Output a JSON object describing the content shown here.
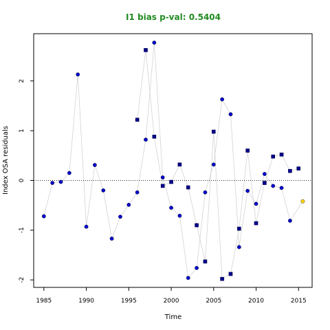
{
  "chart_data": {
    "type": "scatter",
    "title": "I1 bias p-val: 0.5404",
    "title_color": "#228B22",
    "xlabel": "Time",
    "ylabel": "Index OSA residuals",
    "xlim": [
      1983.8,
      2016.6
    ],
    "ylim": [
      -2.15,
      2.95
    ],
    "x_ticks": [
      1985,
      1990,
      1995,
      2000,
      2005,
      2010,
      2015
    ],
    "x_tick_labels": [
      "1985",
      "1990",
      "1995",
      "2000",
      "2005",
      "2010",
      "2015"
    ],
    "y_ticks": [
      -2,
      -1,
      0,
      1,
      2
    ],
    "y_tick_labels": [
      "-2",
      "-1",
      "0",
      "1",
      "2"
    ],
    "reference_line": {
      "y": 0,
      "style": "dotted"
    },
    "grid": false,
    "connector_color": "#d3d3d3",
    "series": [
      {
        "marker": "circle",
        "color": "#0000CD",
        "points": [
          {
            "x": 1985,
            "y": -0.72
          },
          {
            "x": 1986,
            "y": -0.05
          },
          {
            "x": 1987,
            "y": -0.03
          },
          {
            "x": 1988,
            "y": 0.15
          },
          {
            "x": 1989,
            "y": 2.13
          },
          {
            "x": 1990,
            "y": -0.93
          },
          {
            "x": 1991,
            "y": 0.31
          },
          {
            "x": 1992,
            "y": -0.2
          },
          {
            "x": 1993,
            "y": -1.17
          },
          {
            "x": 1994,
            "y": -0.73
          },
          {
            "x": 1995,
            "y": -0.49
          },
          {
            "x": 1996,
            "y": -0.24
          },
          {
            "x": 1997,
            "y": 0.82
          },
          {
            "x": 1998,
            "y": 2.77
          },
          {
            "x": 1999,
            "y": 0.06
          },
          {
            "x": 2000,
            "y": -0.55
          },
          {
            "x": 2001,
            "y": -0.71
          },
          {
            "x": 2002,
            "y": -1.96
          },
          {
            "x": 2003,
            "y": -1.76
          },
          {
            "x": 2004,
            "y": -0.24
          },
          {
            "x": 2005,
            "y": 0.32
          },
          {
            "x": 2006,
            "y": 1.63
          },
          {
            "x": 2007,
            "y": 1.33
          },
          {
            "x": 2008,
            "y": -1.34
          },
          {
            "x": 2009,
            "y": -0.21
          },
          {
            "x": 2010,
            "y": -0.47
          },
          {
            "x": 2011,
            "y": 0.13
          },
          {
            "x": 2012,
            "y": -0.11
          },
          {
            "x": 2013,
            "y": -0.15
          },
          {
            "x": 2014,
            "y": -0.81
          }
        ]
      },
      {
        "marker": "square",
        "color": "#00008B",
        "points": [
          {
            "x": 1996,
            "y": 1.22
          },
          {
            "x": 1997,
            "y": 2.62
          },
          {
            "x": 1998,
            "y": 0.88
          },
          {
            "x": 1999,
            "y": -0.11
          },
          {
            "x": 2000,
            "y": -0.03
          },
          {
            "x": 2001,
            "y": 0.32
          },
          {
            "x": 2002,
            "y": -0.14
          },
          {
            "x": 2003,
            "y": -0.9
          },
          {
            "x": 2004,
            "y": -1.63
          },
          {
            "x": 2005,
            "y": 0.98
          },
          {
            "x": 2006,
            "y": -1.98
          },
          {
            "x": 2007,
            "y": -1.88
          },
          {
            "x": 2008,
            "y": -0.97
          },
          {
            "x": 2009,
            "y": 0.6
          },
          {
            "x": 2010,
            "y": -0.86
          },
          {
            "x": 2011,
            "y": -0.05
          },
          {
            "x": 2012,
            "y": 0.48
          },
          {
            "x": 2013,
            "y": 0.52
          },
          {
            "x": 2014,
            "y": 0.19
          },
          {
            "x": 2015,
            "y": 0.24
          }
        ]
      },
      {
        "marker": "circle",
        "color": "#FFD700",
        "points": [
          {
            "x": 2015.5,
            "y": -0.42
          }
        ]
      }
    ]
  }
}
